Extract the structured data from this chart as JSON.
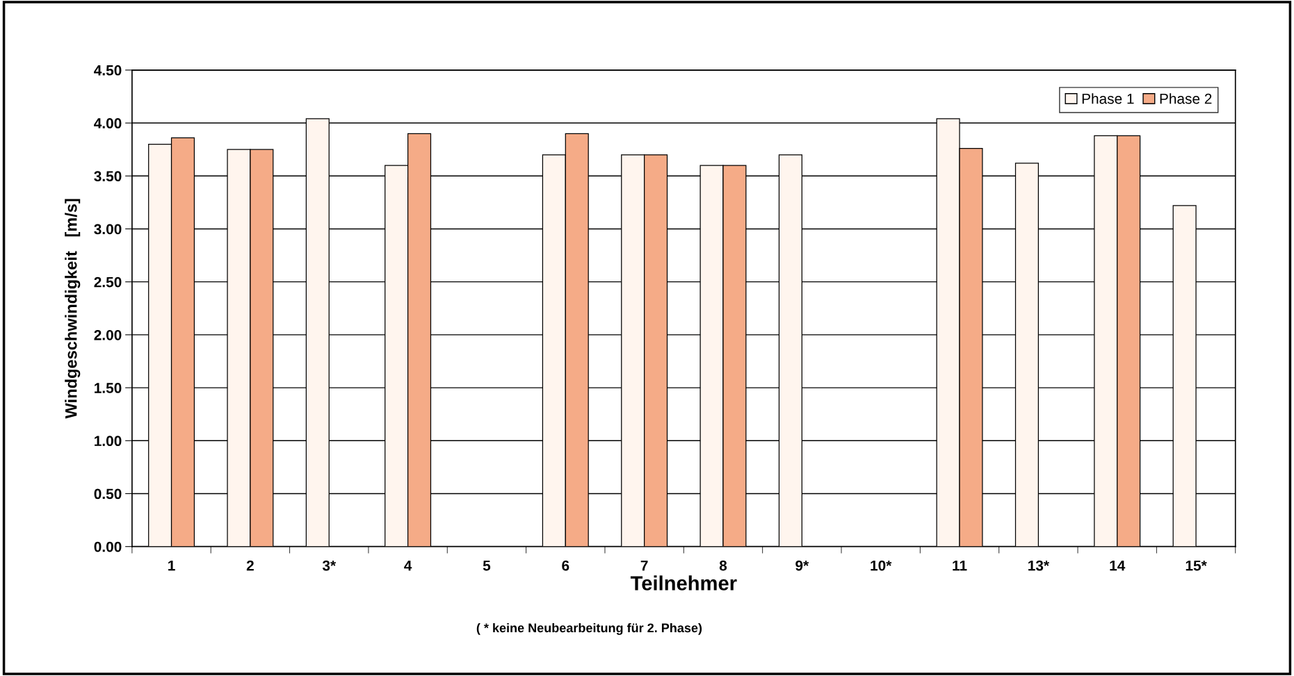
{
  "chart_data": {
    "type": "bar",
    "xlabel": "Teilnehmer",
    "ylabel": "Windgeschwindigkeit   [m/s]",
    "categories": [
      "1",
      "2",
      "3*",
      "4",
      "5",
      "6",
      "7",
      "8",
      "9*",
      "10*",
      "11",
      "13*",
      "14",
      "15*"
    ],
    "series": [
      {
        "name": "Phase 1",
        "color": "#fff5ee",
        "values": [
          3.8,
          3.75,
          4.04,
          3.6,
          null,
          3.7,
          3.7,
          3.6,
          3.7,
          null,
          4.04,
          3.62,
          3.88,
          3.22
        ]
      },
      {
        "name": "Phase 2",
        "color": "#f5ab87",
        "values": [
          3.86,
          3.75,
          null,
          3.9,
          null,
          3.9,
          3.7,
          3.6,
          null,
          null,
          3.76,
          null,
          3.88,
          null
        ]
      }
    ],
    "ylim": [
      0,
      4.5
    ],
    "yticks": [
      {
        "value": 0,
        "label": "0.00"
      },
      {
        "value": 0.5,
        "label": "0.50"
      },
      {
        "value": 1,
        "label": "1.00"
      },
      {
        "value": 1.5,
        "label": "1.50"
      },
      {
        "value": 2,
        "label": "2.00"
      },
      {
        "value": 2.5,
        "label": "2.50"
      },
      {
        "value": 3,
        "label": "3.00"
      },
      {
        "value": 3.5,
        "label": "3.50"
      },
      {
        "value": 4,
        "label": "4.00"
      },
      {
        "value": 4.5,
        "label": "4.50"
      }
    ],
    "grid": "y",
    "legend": "top right",
    "annotations": [
      "( * keine Neubearbeitung für 2. Phase)"
    ]
  }
}
